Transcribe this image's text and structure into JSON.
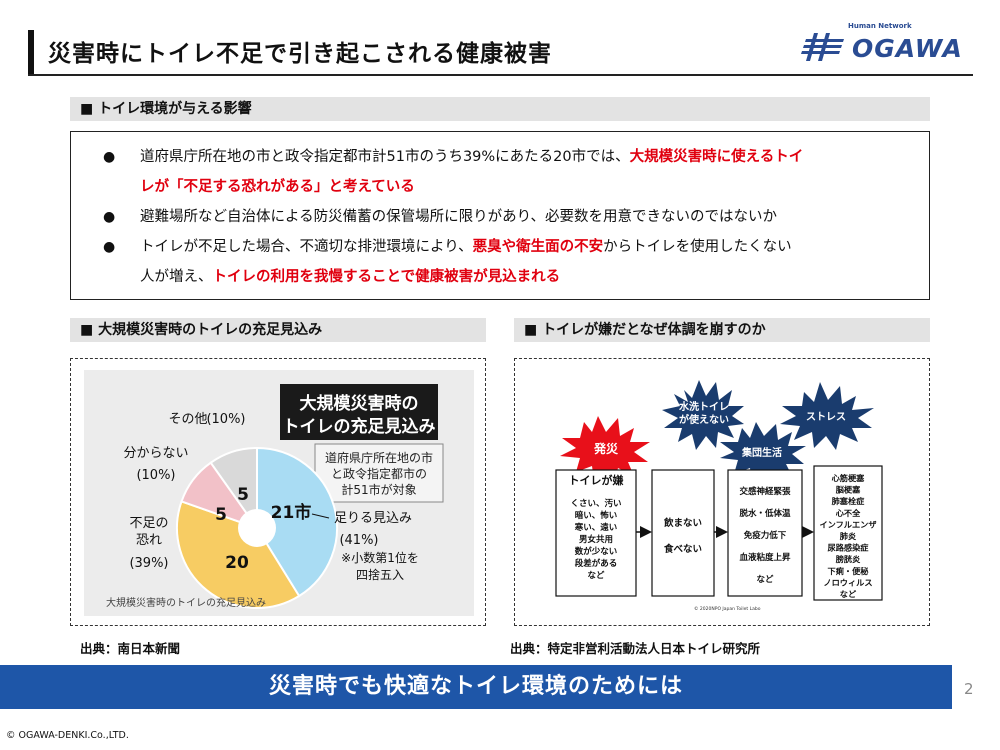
{
  "header": {
    "title": "災害時にトイレ不足で引き起こされる健康被害"
  },
  "logo": {
    "small": "Human Network",
    "text": "OGAWA",
    "brand_color": "#2a4c93"
  },
  "section1": {
    "title": "■ トイレ環境が与える影響",
    "b1_l1a": "道府県庁所在地の市と政令指定都市計51市のうち39%にあたる20市では、",
    "b1_l1b": "大規模災害時に使えるトイ",
    "b1_l2": "レが「不足する恐れがある」と考えている",
    "b2": "避難場所など自治体による防災備蓄の保管場所に限りがあり、必要数を用意できないのではないか",
    "b3_l1a": "トイレが不足した場合、不適切な排泄環境により、",
    "b3_l1b": "悪臭や衛生面の不安",
    "b3_l1c": "からトイレを使用したくない",
    "b4_a": "人が増え、",
    "b4_b": "トイレの利用を我慢することで健康被害が見込まれる"
  },
  "section2": {
    "title": "■ 大規模災害時のトイレの充足見込み",
    "source": "出典：南日本新聞",
    "chart_title_l1": "大規模災害時の",
    "chart_title_l2": "トイレの充足見込み",
    "note_l1": "道府県庁所在地の市",
    "note_l2": "と政令指定都市の",
    "note_l3": "計51市が対象",
    "footnote_l1": "※小数第1位を",
    "footnote_l2": "四捨五入",
    "caption": "大規模災害時のトイレの充足見込み"
  },
  "chart_data": {
    "type": "pie",
    "title": "大規模災害時のトイレの充足見込み",
    "labels": [
      "足りる見込み",
      "不足の恐れ",
      "分からない",
      "その他"
    ],
    "values": [
      21,
      20,
      5,
      5
    ],
    "value_labels": [
      "21市",
      "20",
      "5",
      "5"
    ],
    "percents": [
      "(41%)",
      "(39%)",
      "(10%)",
      "(10%)"
    ],
    "colors": [
      "#a9dcf3",
      "#f7cc63",
      "#f2c1c8",
      "#d9d9d9"
    ]
  },
  "section3": {
    "title": "■ トイレが嫌だとなぜ体調を崩すのか",
    "source": "出典：特定非営利活動法人日本トイレ研究所",
    "burst_disaster": "発災",
    "burst_flush_l1": "水洗トイレ",
    "burst_flush_l2": "が使えない",
    "burst_group": "集団生活",
    "burst_stress": "ストレス",
    "box1_title": "トイレが嫌",
    "box1_lines": [
      "くさい、汚い",
      "暗い、怖い",
      "寒い、遠い",
      "男女共用",
      "数が少ない",
      "段差がある",
      "など"
    ],
    "box2_lines": [
      "飲まない",
      "食べない"
    ],
    "box3_lines": [
      "交感神経緊張",
      "脱水・低体温",
      "免疫力低下",
      "血液粘度上昇",
      "など"
    ],
    "box4_lines": [
      "心筋梗塞",
      "脳梗塞",
      "肺塞栓症",
      "心不全",
      "インフルエンザ",
      "肺炎",
      "尿路感染症",
      "膀胱炎",
      "下痢・便秘",
      "ノロウィルス",
      "など"
    ],
    "copyright": "© 2020NPO Japan Toilet Labo"
  },
  "banner": {
    "text": "災害時でも快適なトイレ環境のためには"
  },
  "footer": {
    "page": "2",
    "copyright": "© OGAWA-DENKI.Co.,LTD."
  }
}
